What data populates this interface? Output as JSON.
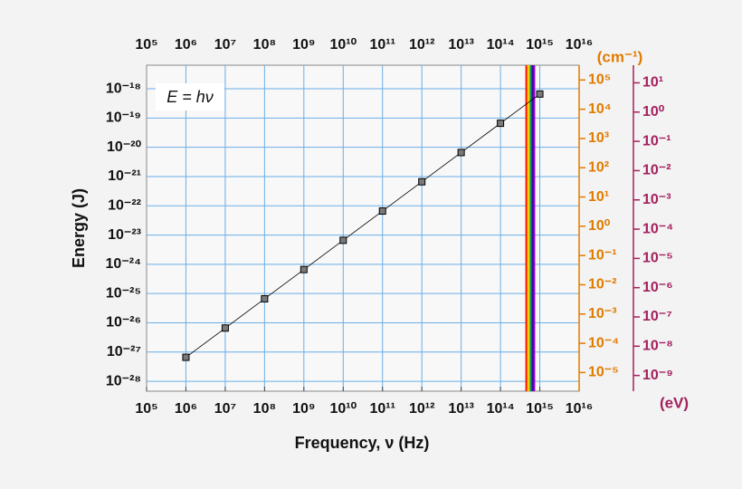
{
  "chart_data": {
    "type": "scatter",
    "log_x": true,
    "log_y": true,
    "grid": true,
    "x_label": "Frequency, ν (Hz)",
    "y_label": "Energy (J)",
    "annotation": "E = hν",
    "x": [
      1000000.0,
      10000000.0,
      100000000.0,
      1000000000.0,
      10000000000.0,
      100000000000.0,
      1000000000000.0,
      10000000000000.0,
      100000000000000.0,
      1000000000000000.0
    ],
    "values": [
      6.626e-28,
      6.626e-27,
      6.626e-26,
      6.626e-25,
      6.626e-24,
      6.626e-23,
      6.626e-22,
      6.626e-21,
      6.626e-20,
      6.626e-19
    ],
    "color": "#7a7a7a",
    "line_color": "#000000",
    "xlim": [
      100000.0,
      1e+16
    ],
    "xticks": [
      {
        "value": 100000.0,
        "label": "10⁵"
      },
      {
        "value": 1000000.0,
        "label": "10⁶"
      },
      {
        "value": 10000000.0,
        "label": "10⁷"
      },
      {
        "value": 100000000.0,
        "label": "10⁸"
      },
      {
        "value": 1000000000.0,
        "label": "10⁹"
      },
      {
        "value": 10000000000.0,
        "label": "10¹⁰"
      },
      {
        "value": 100000000000.0,
        "label": "10¹¹"
      },
      {
        "value": 1000000000000.0,
        "label": "10¹²"
      },
      {
        "value": 10000000000000.0,
        "label": "10¹³"
      },
      {
        "value": 100000000000000.0,
        "label": "10¹⁴"
      },
      {
        "value": 1000000000000000.0,
        "label": "10¹⁵"
      },
      {
        "value": 1e+16,
        "label": "10¹⁶"
      }
    ],
    "ylim": [
      4.6e-29,
      6.4e-18
    ],
    "yticks": [
      {
        "value": 1e-18,
        "label": "10⁻¹⁸"
      },
      {
        "value": 1e-19,
        "label": "10⁻¹⁹"
      },
      {
        "value": 1e-20,
        "label": "10⁻²⁰"
      },
      {
        "value": 1e-21,
        "label": "10⁻²¹"
      },
      {
        "value": 1e-22,
        "label": "10⁻²²"
      },
      {
        "value": 1e-23,
        "label": "10⁻²³"
      },
      {
        "value": 1e-24,
        "label": "10⁻²⁴"
      },
      {
        "value": 1e-25,
        "label": "10⁻²⁵"
      },
      {
        "value": 1e-26,
        "label": "10⁻²⁶"
      },
      {
        "value": 1e-27,
        "label": "10⁻²⁷"
      },
      {
        "value": 1e-28,
        "label": "10⁻²⁸"
      }
    ],
    "y2_label": "(cm⁻¹)",
    "y2_color": "#e07b00",
    "y2lim": [
      2.3e-06,
      320000.0
    ],
    "y2ticks": [
      {
        "value": 100000.0,
        "label": "10⁵"
      },
      {
        "value": 10000.0,
        "label": "10⁴"
      },
      {
        "value": 1000.0,
        "label": "10³"
      },
      {
        "value": 100.0,
        "label": "10²"
      },
      {
        "value": 10.0,
        "label": "10¹"
      },
      {
        "value": 1,
        "label": "10⁰"
      },
      {
        "value": 0.1,
        "label": "10⁻¹"
      },
      {
        "value": 0.01,
        "label": "10⁻²"
      },
      {
        "value": 0.001,
        "label": "10⁻³"
      },
      {
        "value": 0.0001,
        "label": "10⁻⁴"
      },
      {
        "value": 1e-05,
        "label": "10⁻⁵"
      }
    ],
    "y3_label": "(eV)",
    "y3_color": "#a3205e",
    "y3lim": [
      2.9e-10,
      40
    ],
    "y3ticks": [
      {
        "value": 10.0,
        "label": "10¹"
      },
      {
        "value": 1,
        "label": "10⁰"
      },
      {
        "value": 0.1,
        "label": "10⁻¹"
      },
      {
        "value": 0.01,
        "label": "10⁻²"
      },
      {
        "value": 0.001,
        "label": "10⁻³"
      },
      {
        "value": 0.0001,
        "label": "10⁻⁴"
      },
      {
        "value": 1e-05,
        "label": "10⁻⁵"
      },
      {
        "value": 1e-06,
        "label": "10⁻⁶"
      },
      {
        "value": 1e-07,
        "label": "10⁻⁷"
      },
      {
        "value": 1e-08,
        "label": "10⁻⁸"
      },
      {
        "value": 1e-09,
        "label": "10⁻⁹"
      }
    ],
    "visible_band": [
      430000000000000.0,
      750000000000000.0
    ],
    "visible_colors": [
      "#ff0000",
      "#ff8c00",
      "#ffee00",
      "#22bb22",
      "#0044ff",
      "#4b0082",
      "#9400d3"
    ]
  }
}
